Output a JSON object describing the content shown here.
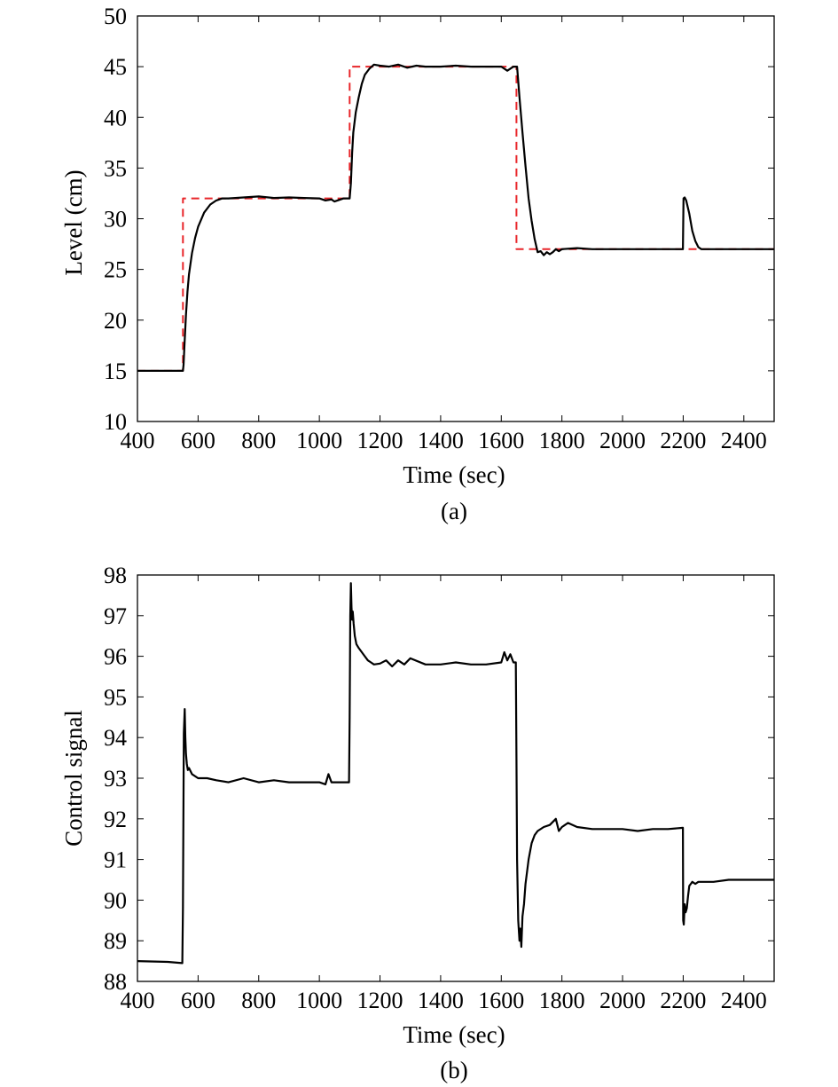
{
  "chart_data": [
    {
      "type": "line",
      "caption": "(a)",
      "xlabel": "Time (sec)",
      "ylabel": "Level (cm)",
      "xlim": [
        400,
        2500
      ],
      "ylim": [
        10,
        50
      ],
      "x_ticks": [
        400,
        600,
        800,
        1000,
        1200,
        1400,
        1600,
        1800,
        2000,
        2200,
        2400
      ],
      "y_ticks": [
        10,
        15,
        20,
        25,
        30,
        35,
        40,
        45,
        50
      ],
      "grid": false,
      "series": [
        {
          "color": "#e8262a",
          "style": "dashed",
          "x": [
            400,
            550,
            550,
            1100,
            1100,
            1650,
            1650,
            2500
          ],
          "y": [
            15,
            15,
            32,
            32,
            45,
            45,
            27,
            27
          ]
        },
        {
          "color": "#000000",
          "style": "solid",
          "x": [
            400,
            500,
            550,
            552,
            555,
            560,
            565,
            570,
            580,
            590,
            600,
            620,
            640,
            660,
            680,
            700,
            750,
            800,
            850,
            900,
            950,
            1000,
            1020,
            1040,
            1050,
            1080,
            1098,
            1100,
            1104,
            1108,
            1112,
            1120,
            1130,
            1140,
            1150,
            1165,
            1180,
            1200,
            1230,
            1260,
            1290,
            1320,
            1350,
            1400,
            1450,
            1500,
            1550,
            1600,
            1620,
            1640,
            1650,
            1652,
            1660,
            1670,
            1680,
            1690,
            1700,
            1710,
            1720,
            1730,
            1740,
            1750,
            1760,
            1770,
            1780,
            1790,
            1800,
            1850,
            1900,
            2000,
            2100,
            2199,
            2201,
            2205,
            2210,
            2220,
            2230,
            2240,
            2250,
            2260,
            2300,
            2400,
            2500
          ],
          "y": [
            15,
            15,
            15,
            15.6,
            17.5,
            20.5,
            22.8,
            24.5,
            26.6,
            28.1,
            29.2,
            30.6,
            31.4,
            31.8,
            32,
            32,
            32.1,
            32.2,
            32.05,
            32.1,
            32.05,
            32,
            31.8,
            31.9,
            31.7,
            32.0,
            32,
            32,
            33.5,
            36.5,
            38.5,
            40.5,
            42.0,
            43.3,
            44.2,
            44.8,
            45.2,
            45.1,
            45.0,
            45.2,
            44.9,
            45.1,
            45.0,
            45.0,
            45.1,
            45.0,
            45.0,
            45.0,
            44.6,
            45.0,
            45,
            45,
            42.0,
            38.5,
            35.2,
            32.0,
            29.8,
            28.0,
            26.7,
            26.8,
            26.4,
            26.7,
            26.5,
            26.7,
            27.0,
            26.8,
            27.0,
            27.1,
            27.0,
            27.0,
            27.0,
            27.0,
            32,
            32.1,
            31.8,
            30.5,
            28.8,
            27.8,
            27.2,
            27.0,
            27.0,
            27.0,
            27.0
          ]
        }
      ]
    },
    {
      "type": "line",
      "caption": "(b)",
      "xlabel": "Time (sec)",
      "ylabel": "Control signal",
      "xlim": [
        400,
        2500
      ],
      "ylim": [
        88,
        98
      ],
      "x_ticks": [
        400,
        600,
        800,
        1000,
        1200,
        1400,
        1600,
        1800,
        2000,
        2200,
        2400
      ],
      "y_ticks": [
        88,
        89,
        90,
        91,
        92,
        93,
        94,
        95,
        96,
        97,
        98
      ],
      "grid": false,
      "series": [
        {
          "color": "#000000",
          "style": "solid",
          "x": [
            400,
            500,
            548,
            550,
            553,
            556,
            558,
            560,
            563,
            566,
            570,
            580,
            600,
            630,
            660,
            700,
            750,
            800,
            850,
            900,
            950,
            1000,
            1020,
            1030,
            1040,
            1098,
            1100,
            1102,
            1104,
            1106,
            1108,
            1110,
            1113,
            1117,
            1122,
            1130,
            1140,
            1150,
            1160,
            1170,
            1180,
            1200,
            1220,
            1240,
            1260,
            1280,
            1300,
            1350,
            1400,
            1450,
            1500,
            1550,
            1600,
            1610,
            1620,
            1630,
            1640,
            1648,
            1650,
            1652,
            1656,
            1660,
            1663,
            1666,
            1670,
            1675,
            1680,
            1690,
            1700,
            1710,
            1720,
            1740,
            1760,
            1780,
            1790,
            1800,
            1820,
            1850,
            1900,
            1950,
            2000,
            2050,
            2100,
            2150,
            2199,
            2200,
            2202,
            2205,
            2208,
            2212,
            2216,
            2220,
            2225,
            2230,
            2240,
            2250,
            2300,
            2350,
            2400,
            2450,
            2500
          ],
          "y": [
            88.5,
            88.48,
            88.45,
            89.8,
            94.1,
            94.7,
            94.0,
            93.6,
            93.35,
            93.2,
            93.25,
            93.1,
            93.0,
            93.0,
            92.95,
            92.9,
            93.0,
            92.9,
            92.95,
            92.9,
            92.9,
            92.9,
            92.85,
            93.1,
            92.9,
            92.9,
            94.5,
            97.0,
            97.8,
            97.2,
            96.9,
            97.1,
            96.8,
            96.5,
            96.3,
            96.2,
            96.1,
            96.0,
            95.9,
            95.85,
            95.8,
            95.82,
            95.9,
            95.75,
            95.9,
            95.8,
            95.95,
            95.8,
            95.8,
            95.85,
            95.8,
            95.8,
            95.85,
            96.1,
            95.9,
            96.05,
            95.85,
            95.85,
            93.5,
            91.0,
            89.5,
            89.0,
            89.3,
            88.85,
            89.6,
            89.9,
            90.4,
            91.0,
            91.4,
            91.6,
            91.7,
            91.8,
            91.85,
            92.0,
            91.7,
            91.8,
            91.9,
            91.8,
            91.75,
            91.75,
            91.75,
            91.7,
            91.75,
            91.75,
            91.78,
            89.5,
            89.4,
            89.9,
            89.7,
            89.8,
            90.1,
            90.35,
            90.4,
            90.45,
            90.4,
            90.45,
            90.45,
            90.5,
            90.5,
            90.5,
            90.5
          ]
        }
      ]
    }
  ]
}
